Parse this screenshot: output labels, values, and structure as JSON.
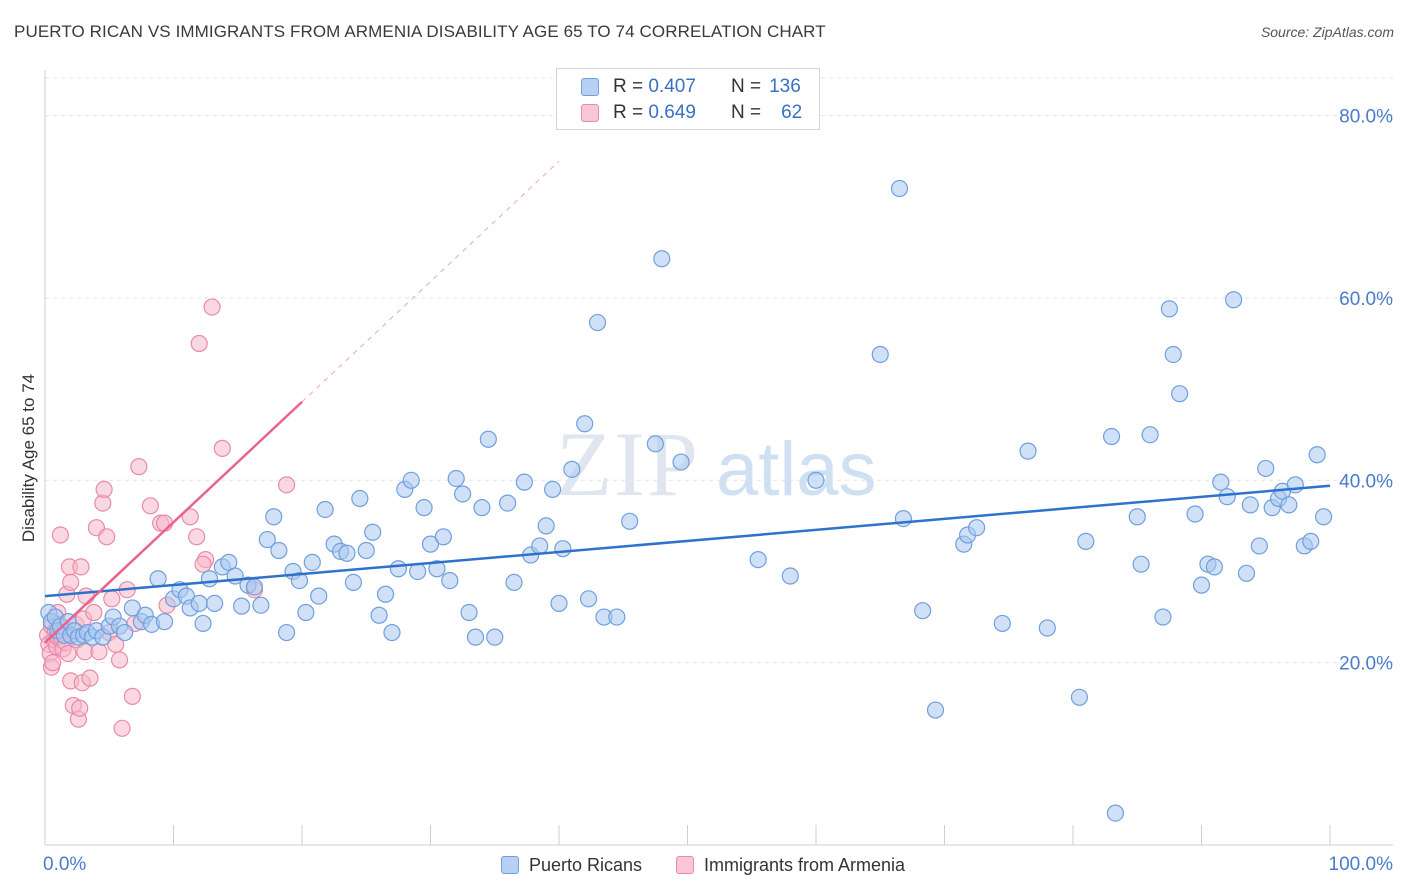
{
  "header": {
    "title": "PUERTO RICAN VS IMMIGRANTS FROM ARMENIA DISABILITY AGE 65 TO 74 CORRELATION CHART",
    "source": "Source: ZipAtlas.com"
  },
  "colors": {
    "blue_fill": "#a9c8f0",
    "blue_stroke": "#6f9fdd",
    "blue_line": "#2f72cc",
    "pink_fill": "#f6b8cb",
    "pink_stroke": "#e98aa8",
    "pink_line": "#e8638f",
    "axis_text": "#4a7cc9"
  },
  "legend_top": {
    "rows": [
      {
        "r_label": "R =",
        "r_value": "0.407",
        "n_label": "N =",
        "n_value": "136"
      },
      {
        "r_label": "R =",
        "r_value": "0.649",
        "n_label": "N =",
        "n_value": "62"
      }
    ]
  },
  "legend_bottom": {
    "items": [
      {
        "label": "Puerto Ricans"
      },
      {
        "label": "Immigrants from Armenia"
      }
    ]
  },
  "chart_data": {
    "type": "scatter",
    "title": "PUERTO RICAN VS IMMIGRANTS FROM ARMENIA DISABILITY AGE 65 TO 74 CORRELATION CHART",
    "xlabel": "",
    "ylabel": "Disability Age 65 to 74",
    "xlim": [
      0,
      100
    ],
    "ylim": [
      0,
      85
    ],
    "x_tick_labels": [
      "0.0%",
      "100.0%"
    ],
    "y_ticks": [
      20,
      40,
      60,
      80
    ],
    "y_tick_labels": [
      "20.0%",
      "40.0%",
      "60.0%",
      "80.0%"
    ],
    "grid": true,
    "legend_placement": "top-center",
    "watermark": "ZIPatlas",
    "series": [
      {
        "name": "Puerto Ricans",
        "r": 0.407,
        "n": 136,
        "trend": {
          "x0": 0,
          "y0": 27.3,
          "x1": 100,
          "y1": 39.4
        },
        "points": [
          [
            0.3,
            25.5
          ],
          [
            0.5,
            24.5
          ],
          [
            0.8,
            25
          ],
          [
            1,
            23.5
          ],
          [
            1.2,
            24
          ],
          [
            1.5,
            23
          ],
          [
            1.8,
            24.5
          ],
          [
            2,
            23
          ],
          [
            2.3,
            23.5
          ],
          [
            2.6,
            22.8
          ],
          [
            3,
            23
          ],
          [
            3.3,
            23.3
          ],
          [
            3.7,
            22.8
          ],
          [
            4,
            23.5
          ],
          [
            4.5,
            22.8
          ],
          [
            5,
            24
          ],
          [
            5.3,
            25
          ],
          [
            5.8,
            24
          ],
          [
            6.2,
            23.3
          ],
          [
            6.8,
            26
          ],
          [
            7.5,
            24.5
          ],
          [
            7.8,
            25.2
          ],
          [
            8.3,
            24.2
          ],
          [
            8.8,
            29.2
          ],
          [
            9.3,
            24.5
          ],
          [
            10,
            27
          ],
          [
            10.5,
            28
          ],
          [
            11,
            27.3
          ],
          [
            11.3,
            26
          ],
          [
            12,
            26.5
          ],
          [
            12.3,
            24.3
          ],
          [
            12.8,
            29.2
          ],
          [
            13.2,
            26.5
          ],
          [
            13.8,
            30.5
          ],
          [
            14.3,
            31
          ],
          [
            14.8,
            29.5
          ],
          [
            15.3,
            26.2
          ],
          [
            15.8,
            28.5
          ],
          [
            16.3,
            28.3
          ],
          [
            16.8,
            26.3
          ],
          [
            17.3,
            33.5
          ],
          [
            17.8,
            36
          ],
          [
            18.2,
            32.3
          ],
          [
            18.8,
            23.3
          ],
          [
            19.3,
            30
          ],
          [
            19.8,
            29
          ],
          [
            20.3,
            25.5
          ],
          [
            20.8,
            31
          ],
          [
            21.3,
            27.3
          ],
          [
            21.8,
            36.8
          ],
          [
            22.5,
            33
          ],
          [
            23,
            32.2
          ],
          [
            23.5,
            32
          ],
          [
            24,
            28.8
          ],
          [
            24.5,
            38
          ],
          [
            25,
            32.3
          ],
          [
            25.5,
            34.3
          ],
          [
            26,
            25.2
          ],
          [
            26.5,
            27.5
          ],
          [
            27,
            23.3
          ],
          [
            27.5,
            30.3
          ],
          [
            28,
            39
          ],
          [
            28.5,
            40
          ],
          [
            29,
            30
          ],
          [
            29.5,
            37
          ],
          [
            30,
            33
          ],
          [
            30.5,
            30.3
          ],
          [
            31,
            33.8
          ],
          [
            31.5,
            29
          ],
          [
            32,
            40.2
          ],
          [
            32.5,
            38.5
          ],
          [
            33,
            25.5
          ],
          [
            33.5,
            22.8
          ],
          [
            34,
            37
          ],
          [
            34.5,
            44.5
          ],
          [
            35,
            22.8
          ],
          [
            36,
            37.5
          ],
          [
            36.5,
            28.8
          ],
          [
            37.3,
            39.8
          ],
          [
            37.8,
            31.8
          ],
          [
            38.5,
            32.8
          ],
          [
            39,
            35
          ],
          [
            39.5,
            39
          ],
          [
            40,
            26.5
          ],
          [
            40.3,
            32.5
          ],
          [
            41,
            41.2
          ],
          [
            42,
            46.2
          ],
          [
            42.3,
            27
          ],
          [
            43,
            57.3
          ],
          [
            43.5,
            25
          ],
          [
            44.5,
            25
          ],
          [
            45.5,
            35.5
          ],
          [
            47.5,
            44
          ],
          [
            48,
            64.3
          ],
          [
            49.5,
            42
          ],
          [
            55.5,
            31.3
          ],
          [
            58,
            29.5
          ],
          [
            60,
            40
          ],
          [
            65,
            53.8
          ],
          [
            66.5,
            72
          ],
          [
            66.8,
            35.8
          ],
          [
            68.3,
            25.7
          ],
          [
            69.3,
            14.8
          ],
          [
            71.5,
            33
          ],
          [
            71.8,
            34
          ],
          [
            72.5,
            34.8
          ],
          [
            74.5,
            24.3
          ],
          [
            76.5,
            43.2
          ],
          [
            78,
            23.8
          ],
          [
            80.5,
            16.2
          ],
          [
            81,
            33.3
          ],
          [
            83,
            44.8
          ],
          [
            83.3,
            3.5
          ],
          [
            85,
            36
          ],
          [
            85.3,
            30.8
          ],
          [
            86,
            45
          ],
          [
            87,
            25
          ],
          [
            87.5,
            58.8
          ],
          [
            87.8,
            53.8
          ],
          [
            88.3,
            49.5
          ],
          [
            89.5,
            36.3
          ],
          [
            90,
            28.5
          ],
          [
            90.5,
            30.8
          ],
          [
            91,
            30.5
          ],
          [
            91.5,
            39.8
          ],
          [
            92,
            38.2
          ],
          [
            92.5,
            59.8
          ],
          [
            93.5,
            29.8
          ],
          [
            93.8,
            37.3
          ],
          [
            94.5,
            32.8
          ],
          [
            95,
            41.3
          ],
          [
            95.5,
            37
          ],
          [
            96,
            38
          ],
          [
            96.3,
            38.8
          ],
          [
            96.8,
            37.3
          ],
          [
            97.3,
            39.5
          ],
          [
            98,
            32.8
          ],
          [
            98.5,
            33.3
          ],
          [
            99,
            42.8
          ],
          [
            99.5,
            36
          ]
        ]
      },
      {
        "name": "Immigrants from Armenia",
        "r": 0.649,
        "n": 62,
        "trend": {
          "x0": 0,
          "y0": 22.2,
          "x1": 20,
          "y1": 48.6
        },
        "trend_dashed_extension": {
          "x0": 20,
          "y0": 48.6,
          "x1": 40,
          "y1": 75
        },
        "points": [
          [
            0.2,
            23
          ],
          [
            0.3,
            22
          ],
          [
            0.4,
            21
          ],
          [
            0.5,
            24
          ],
          [
            0.5,
            19.5
          ],
          [
            0.6,
            20
          ],
          [
            0.7,
            22.5
          ],
          [
            0.8,
            23.5
          ],
          [
            0.9,
            21.8
          ],
          [
            1,
            22.8
          ],
          [
            1,
            25.5
          ],
          [
            1.1,
            24.2
          ],
          [
            1.2,
            23
          ],
          [
            1.2,
            34
          ],
          [
            1.3,
            22.5
          ],
          [
            1.4,
            21.5
          ],
          [
            1.5,
            23.8
          ],
          [
            1.6,
            22.2
          ],
          [
            1.7,
            27.5
          ],
          [
            1.8,
            21
          ],
          [
            1.9,
            30.5
          ],
          [
            2,
            28.8
          ],
          [
            2,
            18
          ],
          [
            2.2,
            15.3
          ],
          [
            2.4,
            24.2
          ],
          [
            2.5,
            22.5
          ],
          [
            2.6,
            13.8
          ],
          [
            2.7,
            15
          ],
          [
            2.8,
            30.5
          ],
          [
            2.9,
            17.8
          ],
          [
            3,
            24.8
          ],
          [
            3.1,
            21.2
          ],
          [
            3.2,
            27.3
          ],
          [
            3.5,
            18.3
          ],
          [
            3.8,
            25.5
          ],
          [
            4,
            34.8
          ],
          [
            4.2,
            21.2
          ],
          [
            4.5,
            37.5
          ],
          [
            4.6,
            39
          ],
          [
            4.8,
            33.8
          ],
          [
            5,
            23.3
          ],
          [
            5.2,
            27
          ],
          [
            5.5,
            22
          ],
          [
            5.8,
            20.3
          ],
          [
            6,
            12.8
          ],
          [
            6.4,
            28
          ],
          [
            6.8,
            16.3
          ],
          [
            7,
            24.3
          ],
          [
            7.3,
            41.5
          ],
          [
            8.2,
            37.2
          ],
          [
            9,
            35.3
          ],
          [
            9.3,
            35.3
          ],
          [
            9.5,
            26.3
          ],
          [
            11.3,
            36
          ],
          [
            11.8,
            33.8
          ],
          [
            12.5,
            31.3
          ],
          [
            12,
            55
          ],
          [
            13,
            59
          ],
          [
            13.8,
            43.5
          ],
          [
            18.8,
            39.5
          ],
          [
            12.3,
            30.8
          ],
          [
            16.3,
            28
          ]
        ]
      }
    ]
  }
}
